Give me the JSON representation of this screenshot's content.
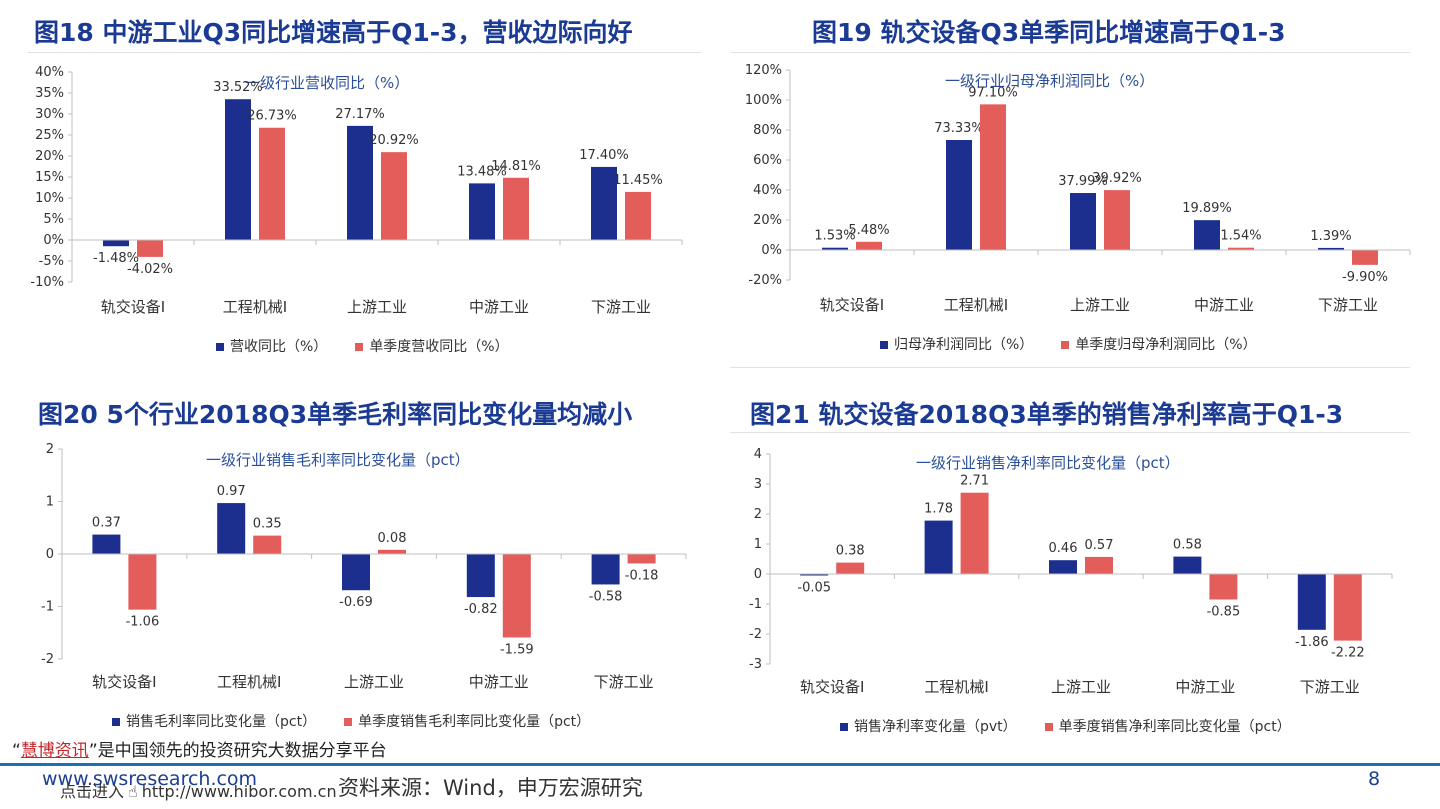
{
  "figures": [
    {
      "title": "图18 中游工业Q3同比增速高于Q1-3，营收边际向好",
      "chart_data": {
        "type": "bar",
        "title": "一级行业营收同比（%）",
        "categories": [
          "轨交设备Ⅰ",
          "工程机械Ⅰ",
          "上游工业",
          "中游工业",
          "下游工业"
        ],
        "series": [
          {
            "name": "营收同比（%）",
            "values": [
              -1.48,
              33.52,
              27.17,
              13.48,
              17.4
            ],
            "color": "#1c2f8f"
          },
          {
            "name": "单季度营收同比（%）",
            "values": [
              -4.02,
              26.73,
              20.92,
              14.81,
              11.45
            ],
            "color": "#e35d5b"
          }
        ],
        "data_labels": [
          [
            "-1.48%",
            "33.52%",
            "27.17%",
            "13.48%",
            "17.40%"
          ],
          [
            "-4.02%",
            "26.73%",
            "20.92%",
            "14.81%",
            "11.45%"
          ]
        ],
        "yticks": [
          "-10%",
          "-5%",
          "0%",
          "5%",
          "10%",
          "15%",
          "20%",
          "25%",
          "30%",
          "35%",
          "40%"
        ],
        "ylim": [
          -10,
          40
        ],
        "legend": "bottom"
      }
    },
    {
      "title": "图19 轨交设备Q3单季同比增速高于Q1-3",
      "chart_data": {
        "type": "bar",
        "title": "一级行业归母净利润同比（%）",
        "categories": [
          "轨交设备Ⅰ",
          "工程机械Ⅰ",
          "上游工业",
          "中游工业",
          "下游工业"
        ],
        "series": [
          {
            "name": "归母净利润同比（%）",
            "values": [
              1.53,
              73.33,
              37.99,
              19.89,
              1.39
            ],
            "color": "#1c2f8f"
          },
          {
            "name": "单季度归母净利润同比（%）",
            "values": [
              5.48,
              97.1,
              39.92,
              1.54,
              -9.9
            ],
            "color": "#e35d5b"
          }
        ],
        "data_labels": [
          [
            "1.53%",
            "73.33%",
            "37.99%",
            "19.89%",
            "1.39%"
          ],
          [
            "5.48%",
            "97.10%",
            "39.92%",
            "1.54%",
            "-9.90%"
          ]
        ],
        "yticks": [
          "-20%",
          "0%",
          "20%",
          "40%",
          "60%",
          "80%",
          "100%",
          "120%"
        ],
        "ylim": [
          -20,
          120
        ],
        "legend": "bottom"
      }
    },
    {
      "title": "图20 5个行业2018Q3单季毛利率同比变化量均减小",
      "chart_data": {
        "type": "bar",
        "title": "一级行业销售毛利率同比变化量（pct）",
        "categories": [
          "轨交设备Ⅰ",
          "工程机械Ⅰ",
          "上游工业",
          "中游工业",
          "下游工业"
        ],
        "series": [
          {
            "name": "销售毛利率同比变化量（pct）",
            "values": [
              0.37,
              0.97,
              -0.69,
              -0.82,
              -0.58
            ],
            "color": "#1c2f8f"
          },
          {
            "name": "单季度销售毛利率同比变化量（pct）",
            "values": [
              -1.06,
              0.35,
              0.08,
              -1.59,
              -0.18
            ],
            "color": "#e35d5b"
          }
        ],
        "data_labels": [
          [
            "0.37",
            "0.97",
            "-0.69",
            "-0.82",
            "-0.58"
          ],
          [
            "-1.06",
            "0.35",
            "0.08",
            "-1.59",
            "-0.18"
          ]
        ],
        "yticks": [
          "-2",
          "-1",
          "0",
          "1",
          "2"
        ],
        "ylim": [
          -2,
          2
        ],
        "legend": "bottom"
      }
    },
    {
      "title": "图21 轨交设备2018Q3单季的销售净利率高于Q1-3",
      "chart_data": {
        "type": "bar",
        "title": "一级行业销售净利率同比变化量（pct）",
        "categories": [
          "轨交设备Ⅰ",
          "工程机械Ⅰ",
          "上游工业",
          "中游工业",
          "下游工业"
        ],
        "series": [
          {
            "name": "销售净利率变化量（pvt）",
            "values": [
              -0.05,
              1.78,
              0.46,
              0.58,
              -1.86
            ],
            "color": "#1c2f8f"
          },
          {
            "name": "单季度销售净利率同比变化量（pct）",
            "values": [
              0.38,
              2.71,
              0.57,
              -0.85,
              -2.22
            ],
            "color": "#e35d5b"
          }
        ],
        "data_labels": [
          [
            "-0.05",
            "1.78",
            "0.46",
            "0.58",
            "-1.86"
          ],
          [
            "0.38",
            "2.71",
            "0.57",
            "-0.85",
            "-2.22"
          ]
        ],
        "yticks": [
          "-3",
          "-2",
          "-1",
          "0",
          "1",
          "2",
          "3",
          "4"
        ],
        "ylim": [
          -3,
          4
        ],
        "legend": "bottom"
      }
    }
  ],
  "footer": {
    "promo_quote_open": "“",
    "promo_brand": "慧博资讯",
    "promo_rest": "”是中国领先的投资研究大数据分享平台",
    "url_left": "www.swsresearch.com",
    "click_text": "点击进入",
    "hibor_url": "http://www.hibor.com.cn",
    "source": "资料来源：Wind，申万宏源研究",
    "page_number": "8",
    "brand_color": "#c0282e"
  }
}
